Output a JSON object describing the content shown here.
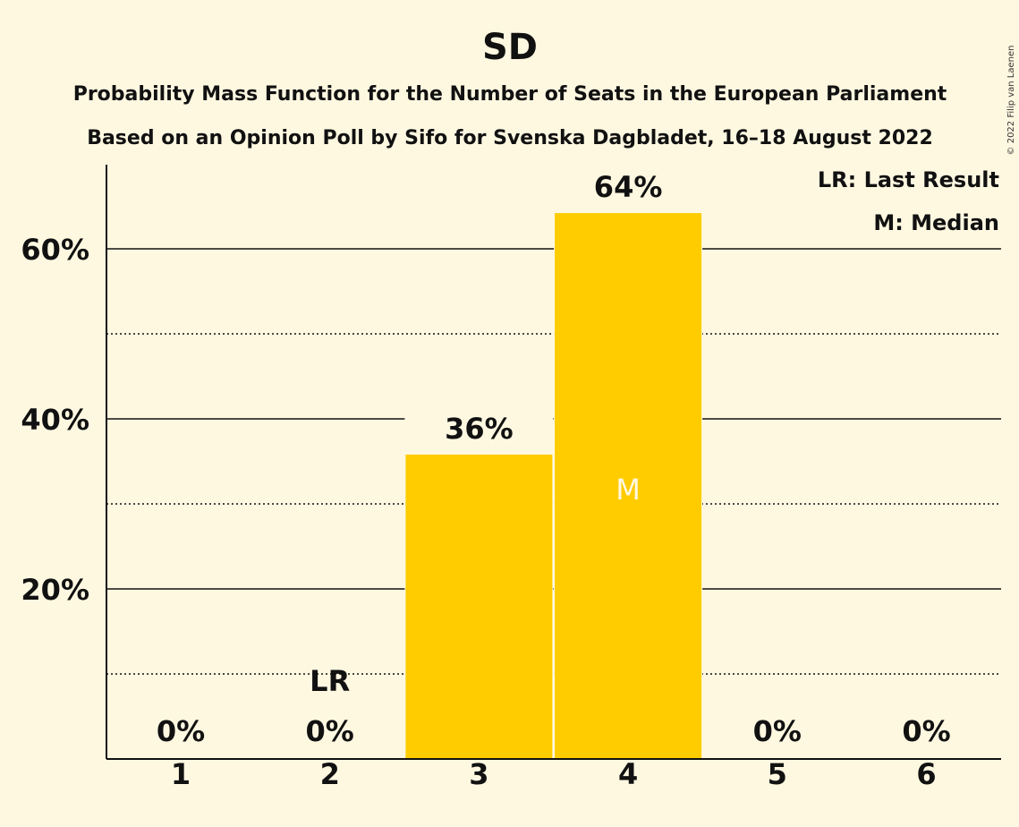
{
  "copyright": "© 2022 Filip van Laenen",
  "chart_data": {
    "type": "bar",
    "title": "SD",
    "subtitle_lines": [
      "Probability Mass Function for the Number of Seats in the European Parliament",
      "Based on an Opinion Poll by Sifo for Svenska Dagbladet, 16–18 August 2022"
    ],
    "categories": [
      "1",
      "2",
      "3",
      "4",
      "5",
      "6"
    ],
    "values": [
      0,
      0,
      35.8,
      64.2,
      0,
      0
    ],
    "value_labels": [
      "0%",
      "0%",
      "36%",
      "64%",
      "0%",
      "0%"
    ],
    "ylim": [
      0,
      70
    ],
    "yticks": [
      20,
      40,
      60
    ],
    "ytick_labels": [
      "20%",
      "40%",
      "60%"
    ],
    "minor_gridlines": [
      10,
      30,
      50
    ],
    "last_result_category": "2",
    "last_result_marker": "LR",
    "median_category": "4",
    "median_marker": "M",
    "legend": [
      "LR: Last Result",
      "M: Median"
    ],
    "legend_position": "top-right",
    "bar_color": "#FFCC00",
    "background_color": "#FFF8E1"
  }
}
